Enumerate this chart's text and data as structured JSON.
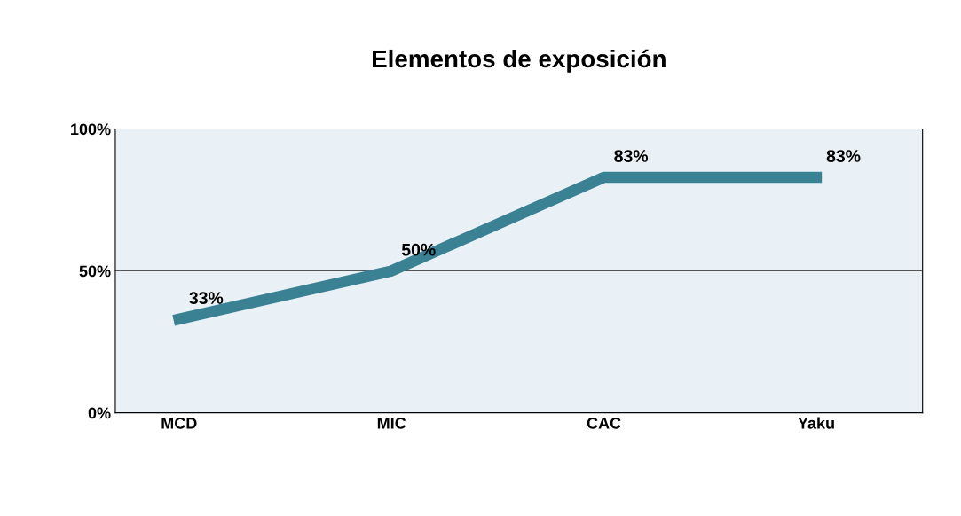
{
  "chart_data": {
    "type": "line",
    "title": "Elementos de exposición",
    "categories": [
      "MCD",
      "MIC",
      "CAC",
      "Yaku"
    ],
    "series": [
      {
        "color": "#3a8293",
        "values": [
          33,
          50,
          83,
          83
        ],
        "value_labels": [
          "33%",
          "50%",
          "83%",
          "83%"
        ]
      }
    ],
    "ylim": [
      0,
      100
    ],
    "yticks": [
      {
        "value": 0,
        "label": "0%"
      },
      {
        "value": 50,
        "label": "50%"
      },
      {
        "value": 100,
        "label": "100%"
      }
    ],
    "grid": "y",
    "line_style": "solid"
  }
}
